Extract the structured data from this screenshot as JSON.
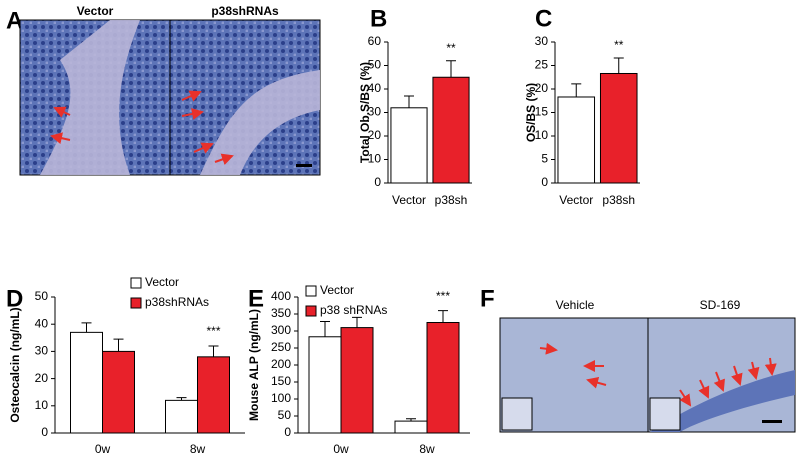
{
  "panel_labels": [
    "A",
    "B",
    "C",
    "D",
    "E",
    "F"
  ],
  "images": {
    "a": {
      "left": "Vector",
      "right": "p38shRNAs"
    },
    "f": {
      "left": "Vehicle",
      "right": "SD-169"
    }
  },
  "chart_data": [
    {
      "type": "bar",
      "ylabel": "Total Ob.S/BS (%)",
      "categories": [
        "Vector",
        "p38sh"
      ],
      "values": [
        32,
        45
      ],
      "errors": [
        5,
        7
      ],
      "colors": [
        "#ffffff",
        "#e8212a"
      ],
      "ylim": [
        0,
        60
      ],
      "yticks": [
        0,
        10,
        20,
        30,
        40,
        50,
        60
      ],
      "annotation": "**",
      "annotation_color": "#e8212a"
    },
    {
      "type": "bar",
      "ylabel": "OS/BS (%)",
      "categories": [
        "Vector",
        "p38sh"
      ],
      "values": [
        18.3,
        23.3
      ],
      "errors": [
        2.8,
        3.3
      ],
      "colors": [
        "#ffffff",
        "#e8212a"
      ],
      "ylim": [
        0,
        30
      ],
      "yticks": [
        0,
        5,
        10,
        15,
        20,
        25,
        30
      ],
      "annotation": "**",
      "annotation_color": "#e8212a"
    },
    {
      "type": "grouped-bar",
      "ylabel": "Osteocalcin (ng/mL)",
      "categories": [
        "0w",
        "8w"
      ],
      "series": [
        {
          "name": "Vector",
          "color": "#ffffff",
          "values": [
            37,
            12
          ],
          "errors": [
            3.5,
            1
          ]
        },
        {
          "name": "p38shRNAs",
          "color": "#e8212a",
          "values": [
            30,
            28
          ],
          "errors": [
            4.5,
            4
          ]
        }
      ],
      "ylim": [
        0,
        50
      ],
      "yticks": [
        0,
        10,
        20,
        30,
        40,
        50
      ],
      "annotation": "***",
      "annotation_color": "#e8212a",
      "legend": "top-right"
    },
    {
      "type": "grouped-bar",
      "ylabel": "Mouse ALP (ng/mL)",
      "categories": [
        "0w",
        "8w"
      ],
      "series": [
        {
          "name": "Vector",
          "color": "#ffffff",
          "values": [
            283,
            35
          ],
          "errors": [
            45,
            7
          ]
        },
        {
          "name": "p38 shRNAs",
          "color": "#e8212a",
          "values": [
            310,
            325
          ],
          "errors": [
            30,
            35
          ]
        }
      ],
      "ylim": [
        0,
        400
      ],
      "yticks": [
        0,
        50,
        100,
        150,
        200,
        250,
        300,
        350,
        400
      ],
      "annotation": "***",
      "annotation_color": "#e8212a",
      "legend": "top-left"
    }
  ]
}
